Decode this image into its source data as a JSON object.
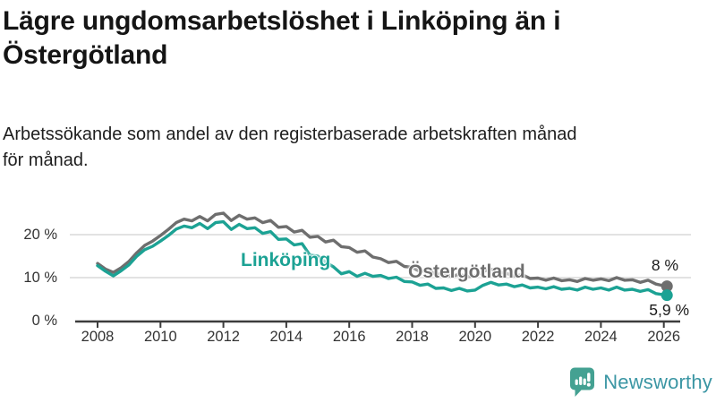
{
  "title_lines": [
    "Lägre ungdomsarbetslöshet i Linköping än i",
    "Östergötland"
  ],
  "subtitle_lines": [
    "Arbetssökande som andel av den registerbaserade arbetskraften månad",
    "för månad."
  ],
  "branding": {
    "wordmark": "Newsworthy",
    "icon": "newsworthy-bubble-bar-chart-icon"
  },
  "colors": {
    "linkoping_line": "#1CA294",
    "ostergotland_line": "#6E6E6E",
    "gridline": "#D9D9D9",
    "axis": "#3C3C3C",
    "tick_text": "#333333",
    "title_text": "#151515",
    "brand_text": "#3B96A4",
    "brand_icon": "#44A192"
  },
  "chart_data": {
    "type": "line",
    "unit": "%",
    "grid": true,
    "legend_position": "inline-labels",
    "xlim": [
      2007.8,
      2026.7
    ],
    "ylim": [
      0,
      26
    ],
    "x_ticks": [
      2008,
      2010,
      2012,
      2014,
      2016,
      2018,
      2020,
      2022,
      2024,
      2026
    ],
    "y_ticks": [
      {
        "value": 0,
        "label": "0 %"
      },
      {
        "value": 10,
        "label": "10 %"
      },
      {
        "value": 20,
        "label": "20 %"
      }
    ],
    "x": [
      2008,
      2008.25,
      2008.5,
      2008.75,
      2009,
      2009.25,
      2009.5,
      2009.75,
      2010,
      2010.25,
      2010.5,
      2010.75,
      2011,
      2011.25,
      2011.5,
      2011.75,
      2012,
      2012.25,
      2012.5,
      2012.75,
      2013,
      2013.25,
      2013.5,
      2013.75,
      2014,
      2014.25,
      2014.5,
      2014.75,
      2015,
      2015.25,
      2015.5,
      2015.75,
      2016,
      2016.25,
      2016.5,
      2016.75,
      2017,
      2017.25,
      2017.5,
      2017.75,
      2018,
      2018.25,
      2018.5,
      2018.75,
      2019,
      2019.25,
      2019.5,
      2019.75,
      2020,
      2020.25,
      2020.5,
      2020.75,
      2021,
      2021.25,
      2021.5,
      2021.75,
      2022,
      2022.25,
      2022.5,
      2022.75,
      2023,
      2023.25,
      2023.5,
      2023.75,
      2024,
      2024.25,
      2024.5,
      2024.75,
      2025,
      2025.25,
      2025.5,
      2025.75,
      2026,
      2026.1
    ],
    "series": [
      {
        "name": "Östergötland",
        "color": "#6E6E6E",
        "end_label": "8 %",
        "values": [
          13.3,
          12.0,
          11.2,
          12.3,
          13.8,
          15.8,
          17.5,
          18.5,
          19.8,
          21.2,
          22.8,
          23.6,
          23.2,
          24.2,
          23.2,
          24.7,
          25.0,
          23.3,
          24.5,
          23.6,
          23.9,
          22.8,
          23.3,
          21.7,
          21.9,
          20.6,
          21.0,
          19.4,
          19.6,
          18.3,
          18.7,
          17.2,
          17.0,
          15.9,
          16.2,
          14.8,
          14.4,
          13.5,
          13.8,
          12.6,
          12.4,
          11.4,
          11.8,
          10.8,
          10.9,
          10.3,
          10.8,
          10.2,
          10.4,
          11.4,
          12.0,
          11.2,
          11.0,
          10.4,
          10.7,
          9.8,
          9.9,
          9.4,
          9.9,
          9.3,
          9.5,
          9.1,
          9.8,
          9.4,
          9.7,
          9.3,
          10.0,
          9.4,
          9.5,
          8.9,
          9.4,
          8.5,
          8.1,
          8.0
        ]
      },
      {
        "name": "Linköping",
        "color": "#1CA294",
        "end_label": "5,9 %",
        "values": [
          12.8,
          11.5,
          10.4,
          11.6,
          13.0,
          15.0,
          16.5,
          17.3,
          18.5,
          19.8,
          21.3,
          22.0,
          21.6,
          22.6,
          21.4,
          22.8,
          23.0,
          21.2,
          22.4,
          21.4,
          21.6,
          20.3,
          20.7,
          18.9,
          19.0,
          17.6,
          17.9,
          15.2,
          15.0,
          13.6,
          12.5,
          10.9,
          11.4,
          10.3,
          11.0,
          10.3,
          10.5,
          9.8,
          10.1,
          9.1,
          9.0,
          8.2,
          8.5,
          7.5,
          7.6,
          7.0,
          7.5,
          6.9,
          7.1,
          8.2,
          8.9,
          8.3,
          8.5,
          7.9,
          8.3,
          7.6,
          7.8,
          7.4,
          7.9,
          7.3,
          7.5,
          7.1,
          7.8,
          7.3,
          7.6,
          7.1,
          7.8,
          7.1,
          7.3,
          6.8,
          7.2,
          6.3,
          6.0,
          5.9
        ]
      }
    ]
  }
}
